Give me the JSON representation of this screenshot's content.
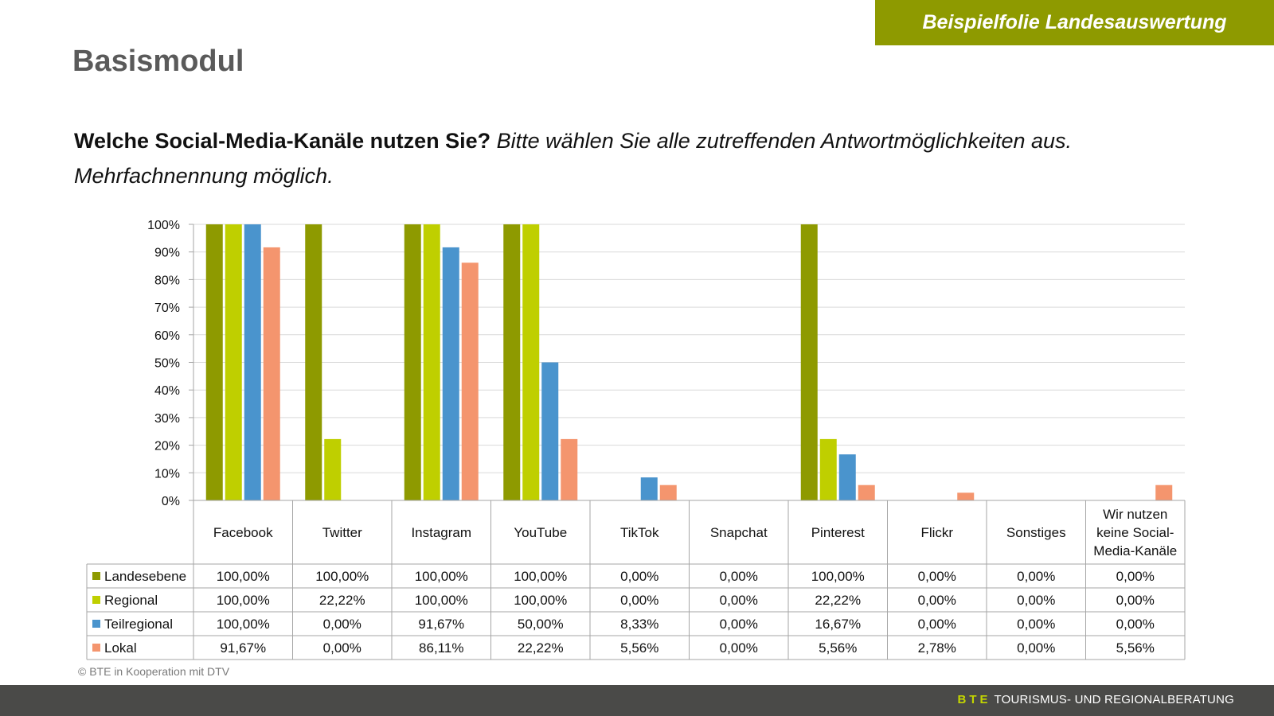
{
  "badge": "Beispielfolie Landesauswertung",
  "title": "Basismodul",
  "question": {
    "bold": "Welche Social-Media-Kanäle nutzen Sie?",
    "italic": " Bitte wählen Sie alle zutreffenden Antwortmöglichkeiten aus. Mehrfachnennung möglich."
  },
  "copyright": "© BTE in Kooperation mit DTV",
  "footer": {
    "brand": "BTE",
    "text": "TOURISMUS- UND REGIONALBERATUNG"
  },
  "chart_data": {
    "type": "bar",
    "title": "",
    "xlabel": "",
    "ylabel": "",
    "ylim": [
      0,
      100
    ],
    "yticks": [
      "0%",
      "10%",
      "20%",
      "30%",
      "40%",
      "50%",
      "60%",
      "70%",
      "80%",
      "90%",
      "100%"
    ],
    "grid": true,
    "legend": "data-table-left",
    "categories": [
      "Facebook",
      "Twitter",
      "Instagram",
      "YouTube",
      "TikTok",
      "Snapchat",
      "Pinterest",
      "Flickr",
      "Sonstiges",
      "Wir nutzen keine Social-Media-Kanäle"
    ],
    "category_lines": [
      [
        "Facebook"
      ],
      [
        "Twitter"
      ],
      [
        "Instagram"
      ],
      [
        "YouTube"
      ],
      [
        "TikTok"
      ],
      [
        "Snapchat"
      ],
      [
        "Pinterest"
      ],
      [
        "Flickr"
      ],
      [
        "Sonstiges"
      ],
      [
        "Wir nutzen",
        "keine Social-",
        "Media-Kanäle"
      ]
    ],
    "series": [
      {
        "name": "Landesebene",
        "color": "#8e9a00",
        "values": [
          100,
          100,
          100,
          100,
          0,
          0,
          100,
          0,
          0,
          0
        ],
        "labels": [
          "100,00%",
          "100,00%",
          "100,00%",
          "100,00%",
          "0,00%",
          "0,00%",
          "100,00%",
          "0,00%",
          "0,00%",
          "0,00%"
        ]
      },
      {
        "name": "Regional",
        "color": "#bfcf00",
        "values": [
          100,
          22.22,
          100,
          100,
          0,
          0,
          22.22,
          0,
          0,
          0
        ],
        "labels": [
          "100,00%",
          "22,22%",
          "100,00%",
          "100,00%",
          "0,00%",
          "0,00%",
          "22,22%",
          "0,00%",
          "0,00%",
          "0,00%"
        ]
      },
      {
        "name": "Teilregional",
        "color": "#4a94cd",
        "values": [
          100,
          0,
          91.67,
          50,
          8.33,
          0,
          16.67,
          0,
          0,
          0
        ],
        "labels": [
          "100,00%",
          "0,00%",
          "91,67%",
          "50,00%",
          "8,33%",
          "0,00%",
          "16,67%",
          "0,00%",
          "0,00%",
          "0,00%"
        ]
      },
      {
        "name": "Lokal",
        "color": "#f4956e",
        "values": [
          91.67,
          0,
          86.11,
          22.22,
          5.56,
          0,
          5.56,
          2.78,
          0,
          5.56
        ],
        "labels": [
          "91,67%",
          "0,00%",
          "86,11%",
          "22,22%",
          "5,56%",
          "0,00%",
          "5,56%",
          "2,78%",
          "0,00%",
          "5,56%"
        ]
      }
    ]
  }
}
